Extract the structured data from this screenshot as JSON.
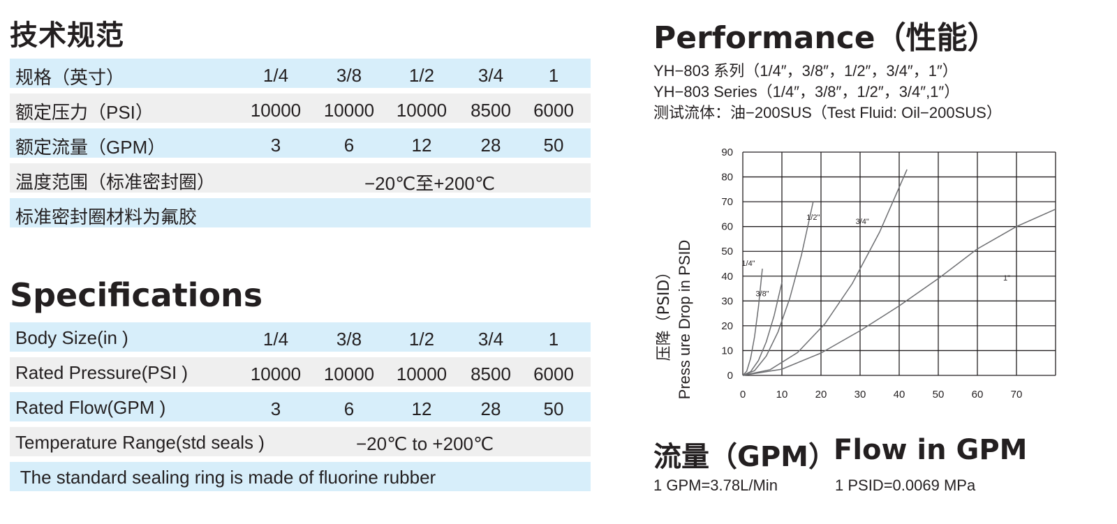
{
  "spec_cn": {
    "title": "技术规范",
    "rows": [
      {
        "label": "规格（英寸）",
        "values": [
          "1/4",
          "3/8",
          "1/2",
          "3/4",
          "1"
        ]
      },
      {
        "label": "额定压力（PSI）",
        "values": [
          "10000",
          "10000",
          "10000",
          "8500",
          "6000"
        ]
      },
      {
        "label": "额定流量（GPM）",
        "values": [
          "3",
          "6",
          "12",
          "28",
          "50"
        ]
      },
      {
        "label": "温度范围（标准密封圈）",
        "span": "−20℃至+200℃"
      },
      {
        "label": "标准密封圈材料为氟胶"
      }
    ]
  },
  "spec_en": {
    "title": "Specifications",
    "rows": [
      {
        "label": "Body Size(in )",
        "values": [
          "1/4",
          "3/8",
          "1/2",
          "3/4",
          "1"
        ]
      },
      {
        "label": "Rated Pressure(PSI )",
        "values": [
          "10000",
          "10000",
          "10000",
          "8500",
          "6000"
        ]
      },
      {
        "label": "Rated Flow(GPM )",
        "values": [
          "3",
          "6",
          "12",
          "28",
          "50"
        ]
      },
      {
        "label": "Temperature Range(std seals )",
        "span": "−20℃ to +200℃"
      },
      {
        "label": " The standard sealing ring is made of fluorine rubber"
      }
    ]
  },
  "performance": {
    "title": "Performance（性能）",
    "line1": "YH−803 系列（1/4″，3/8″，1/2″，3/4″，1″）",
    "line2": "YH−803 Series（1/4″，3/8″，1/2″，3/4″,1″）",
    "line3": "测试流体：油−200SUS（Test Fluid: Oil−200SUS）"
  },
  "footer": {
    "flow_cn": "流量（GPM）",
    "flow_en": "Flow in GPM",
    "gpm_note": "1 GPM=3.78L/Min",
    "psid_note": "1 PSID=0.0069 MPa"
  },
  "chart_data": {
    "type": "line",
    "title": "",
    "xlabel": "",
    "ylabel_cn": "压降（PSID）",
    "ylabel_en": "Press ure Drop in PSID",
    "xlim": [
      0,
      80
    ],
    "ylim": [
      0,
      90
    ],
    "x_ticks": [
      0,
      10,
      20,
      30,
      40,
      50,
      60,
      70
    ],
    "y_ticks": [
      0,
      10,
      20,
      30,
      40,
      50,
      60,
      70,
      80,
      90
    ],
    "grid": true,
    "colors": {
      "line": "#6d6e71",
      "grid": "#231f20",
      "table_blue": "#d7eefa",
      "table_gray": "#efefef"
    },
    "series": [
      {
        "name": "1/4\"",
        "x": [
          0,
          1,
          2,
          3,
          4,
          5
        ],
        "y": [
          0,
          1.7,
          6.9,
          15.5,
          27.6,
          43
        ]
      },
      {
        "name": "3/8\"",
        "x": [
          0,
          2,
          4,
          6,
          8,
          10
        ],
        "y": [
          0,
          1.5,
          6,
          13.5,
          24,
          37.5
        ]
      },
      {
        "name": "1/2\"",
        "x": [
          0,
          3,
          6,
          9,
          12,
          15,
          18
        ],
        "y": [
          0,
          1.9,
          7.8,
          17.5,
          31,
          48.5,
          70
        ]
      },
      {
        "name": "3/4\"",
        "x": [
          0,
          7,
          14,
          21,
          28,
          35,
          42
        ],
        "y": [
          0,
          2.3,
          9.2,
          20.8,
          37,
          57.8,
          83
        ]
      },
      {
        "name": "1\"",
        "x": [
          0,
          10,
          20,
          30,
          40,
          50,
          60,
          70,
          80
        ],
        "y": [
          0,
          2.5,
          9,
          18,
          28,
          39,
          51,
          60,
          67
        ]
      }
    ]
  }
}
